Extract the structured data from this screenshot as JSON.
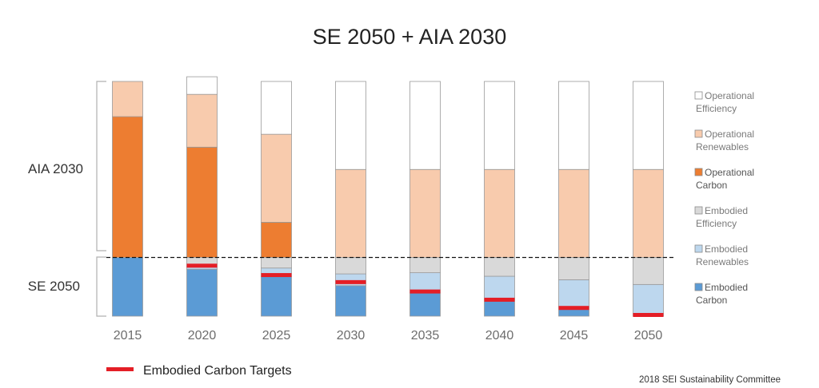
{
  "chart_data": {
    "type": "bar",
    "stacked": true,
    "title": "SE 2050 + AIA 2030",
    "categories": [
      "2015",
      "2020",
      "2025",
      "2030",
      "2035",
      "2040",
      "2045",
      "2050"
    ],
    "series": [
      {
        "name": "Embodied Carbon",
        "color": "#5b9bd5",
        "values": [
          25,
          20,
          17,
          13,
          10,
          7,
          4,
          0
        ]
      },
      {
        "name": "Embodied Renewables",
        "color": "#bdd7ee",
        "values": [
          0,
          1,
          3.5,
          5,
          8.5,
          10,
          11.5,
          13.5
        ]
      },
      {
        "name": "Embodied Efficiency",
        "color": "#d9d9d9",
        "values": [
          0,
          4,
          4.5,
          7,
          6.5,
          8,
          9.5,
          11.5
        ]
      },
      {
        "name": "Operational Carbon",
        "color": "#ed7d31",
        "values": [
          60,
          47,
          15,
          0,
          0,
          0,
          0,
          0
        ]
      },
      {
        "name": "Operational Renewables",
        "color": "#f8cbad",
        "values": [
          15,
          22.5,
          37.5,
          37.5,
          37.5,
          37.5,
          37.5,
          37.5
        ]
      },
      {
        "name": "Operational Efficiency",
        "color": "#ffffff",
        "values": [
          0,
          7.5,
          22.5,
          37.5,
          37.5,
          37.5,
          37.5,
          37.5
        ]
      }
    ],
    "embodied_carbon_targets": [
      null,
      21.5,
      17.5,
      14.5,
      10.5,
      7,
      3.5,
      0
    ],
    "ylim": [
      0,
      100
    ],
    "reference_line": {
      "value": 25,
      "style": "dashed"
    },
    "brackets": [
      {
        "label": "AIA 2030",
        "from": 25,
        "to": 100
      },
      {
        "label": "SE 2050",
        "from": 0,
        "to": 25
      }
    ],
    "legend": {
      "position": "right",
      "items": [
        {
          "lines": [
            "Operational",
            "Efficiency"
          ],
          "color": "#ffffff",
          "dark": false
        },
        {
          "lines": [
            "Operational",
            "Renewables"
          ],
          "color": "#f8cbad",
          "dark": false
        },
        {
          "lines": [
            "Operational",
            "Carbon"
          ],
          "color": "#ed7d31",
          "dark": true
        },
        {
          "lines": [
            "Embodied",
            "Efficiency"
          ],
          "color": "#d9d9d9",
          "dark": false
        },
        {
          "lines": [
            "Embodied",
            "Renewables"
          ],
          "color": "#bdd7ee",
          "dark": false
        },
        {
          "lines": [
            "Embodied",
            "Carbon"
          ],
          "color": "#5b9bd5",
          "dark": true
        }
      ]
    },
    "target_legend_label": "Embodied Carbon Targets",
    "target_color": "#e41e26"
  },
  "credit": "2018 SEI Sustainability Committee"
}
